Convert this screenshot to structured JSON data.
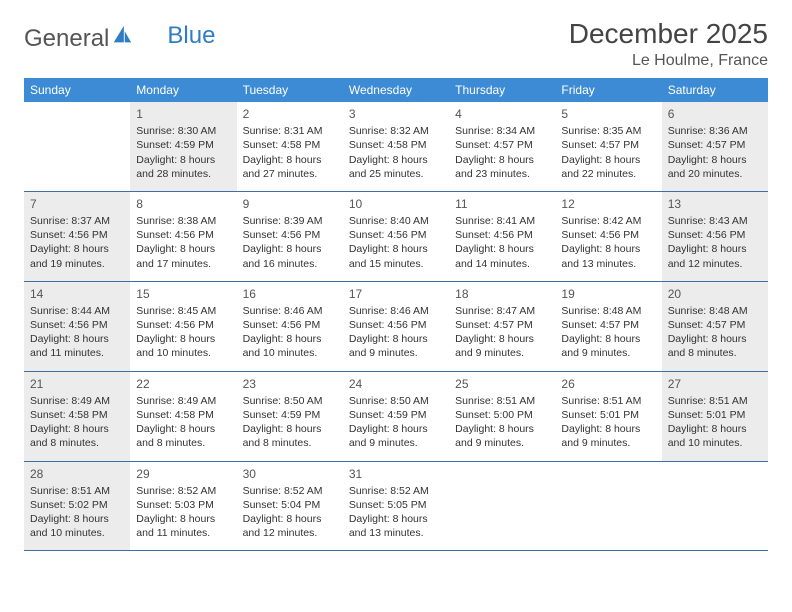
{
  "logo": {
    "word1": "General",
    "word2": "Blue"
  },
  "header": {
    "month": "December 2025",
    "location": "Le Houlme, France"
  },
  "colors": {
    "header_bg": "#3d8bd4",
    "header_text": "#ffffff",
    "week_border": "#3d6fa3",
    "shade_bg": "#ececec",
    "body_text": "#333333",
    "logo_gray": "#555555",
    "logo_blue": "#2f7dc4"
  },
  "weekdays": [
    "Sunday",
    "Monday",
    "Tuesday",
    "Wednesday",
    "Thursday",
    "Friday",
    "Saturday"
  ],
  "weeks": [
    [
      {
        "day": "",
        "shade": false
      },
      {
        "day": "1",
        "shade": true,
        "sunrise": "Sunrise: 8:30 AM",
        "sunset": "Sunset: 4:59 PM",
        "daylight": "Daylight: 8 hours and 28 minutes."
      },
      {
        "day": "2",
        "shade": false,
        "sunrise": "Sunrise: 8:31 AM",
        "sunset": "Sunset: 4:58 PM",
        "daylight": "Daylight: 8 hours and 27 minutes."
      },
      {
        "day": "3",
        "shade": false,
        "sunrise": "Sunrise: 8:32 AM",
        "sunset": "Sunset: 4:58 PM",
        "daylight": "Daylight: 8 hours and 25 minutes."
      },
      {
        "day": "4",
        "shade": false,
        "sunrise": "Sunrise: 8:34 AM",
        "sunset": "Sunset: 4:57 PM",
        "daylight": "Daylight: 8 hours and 23 minutes."
      },
      {
        "day": "5",
        "shade": false,
        "sunrise": "Sunrise: 8:35 AM",
        "sunset": "Sunset: 4:57 PM",
        "daylight": "Daylight: 8 hours and 22 minutes."
      },
      {
        "day": "6",
        "shade": true,
        "sunrise": "Sunrise: 8:36 AM",
        "sunset": "Sunset: 4:57 PM",
        "daylight": "Daylight: 8 hours and 20 minutes."
      }
    ],
    [
      {
        "day": "7",
        "shade": true,
        "sunrise": "Sunrise: 8:37 AM",
        "sunset": "Sunset: 4:56 PM",
        "daylight": "Daylight: 8 hours and 19 minutes."
      },
      {
        "day": "8",
        "shade": false,
        "sunrise": "Sunrise: 8:38 AM",
        "sunset": "Sunset: 4:56 PM",
        "daylight": "Daylight: 8 hours and 17 minutes."
      },
      {
        "day": "9",
        "shade": false,
        "sunrise": "Sunrise: 8:39 AM",
        "sunset": "Sunset: 4:56 PM",
        "daylight": "Daylight: 8 hours and 16 minutes."
      },
      {
        "day": "10",
        "shade": false,
        "sunrise": "Sunrise: 8:40 AM",
        "sunset": "Sunset: 4:56 PM",
        "daylight": "Daylight: 8 hours and 15 minutes."
      },
      {
        "day": "11",
        "shade": false,
        "sunrise": "Sunrise: 8:41 AM",
        "sunset": "Sunset: 4:56 PM",
        "daylight": "Daylight: 8 hours and 14 minutes."
      },
      {
        "day": "12",
        "shade": false,
        "sunrise": "Sunrise: 8:42 AM",
        "sunset": "Sunset: 4:56 PM",
        "daylight": "Daylight: 8 hours and 13 minutes."
      },
      {
        "day": "13",
        "shade": true,
        "sunrise": "Sunrise: 8:43 AM",
        "sunset": "Sunset: 4:56 PM",
        "daylight": "Daylight: 8 hours and 12 minutes."
      }
    ],
    [
      {
        "day": "14",
        "shade": true,
        "sunrise": "Sunrise: 8:44 AM",
        "sunset": "Sunset: 4:56 PM",
        "daylight": "Daylight: 8 hours and 11 minutes."
      },
      {
        "day": "15",
        "shade": false,
        "sunrise": "Sunrise: 8:45 AM",
        "sunset": "Sunset: 4:56 PM",
        "daylight": "Daylight: 8 hours and 10 minutes."
      },
      {
        "day": "16",
        "shade": false,
        "sunrise": "Sunrise: 8:46 AM",
        "sunset": "Sunset: 4:56 PM",
        "daylight": "Daylight: 8 hours and 10 minutes."
      },
      {
        "day": "17",
        "shade": false,
        "sunrise": "Sunrise: 8:46 AM",
        "sunset": "Sunset: 4:56 PM",
        "daylight": "Daylight: 8 hours and 9 minutes."
      },
      {
        "day": "18",
        "shade": false,
        "sunrise": "Sunrise: 8:47 AM",
        "sunset": "Sunset: 4:57 PM",
        "daylight": "Daylight: 8 hours and 9 minutes."
      },
      {
        "day": "19",
        "shade": false,
        "sunrise": "Sunrise: 8:48 AM",
        "sunset": "Sunset: 4:57 PM",
        "daylight": "Daylight: 8 hours and 9 minutes."
      },
      {
        "day": "20",
        "shade": true,
        "sunrise": "Sunrise: 8:48 AM",
        "sunset": "Sunset: 4:57 PM",
        "daylight": "Daylight: 8 hours and 8 minutes."
      }
    ],
    [
      {
        "day": "21",
        "shade": true,
        "sunrise": "Sunrise: 8:49 AM",
        "sunset": "Sunset: 4:58 PM",
        "daylight": "Daylight: 8 hours and 8 minutes."
      },
      {
        "day": "22",
        "shade": false,
        "sunrise": "Sunrise: 8:49 AM",
        "sunset": "Sunset: 4:58 PM",
        "daylight": "Daylight: 8 hours and 8 minutes."
      },
      {
        "day": "23",
        "shade": false,
        "sunrise": "Sunrise: 8:50 AM",
        "sunset": "Sunset: 4:59 PM",
        "daylight": "Daylight: 8 hours and 8 minutes."
      },
      {
        "day": "24",
        "shade": false,
        "sunrise": "Sunrise: 8:50 AM",
        "sunset": "Sunset: 4:59 PM",
        "daylight": "Daylight: 8 hours and 9 minutes."
      },
      {
        "day": "25",
        "shade": false,
        "sunrise": "Sunrise: 8:51 AM",
        "sunset": "Sunset: 5:00 PM",
        "daylight": "Daylight: 8 hours and 9 minutes."
      },
      {
        "day": "26",
        "shade": false,
        "sunrise": "Sunrise: 8:51 AM",
        "sunset": "Sunset: 5:01 PM",
        "daylight": "Daylight: 8 hours and 9 minutes."
      },
      {
        "day": "27",
        "shade": true,
        "sunrise": "Sunrise: 8:51 AM",
        "sunset": "Sunset: 5:01 PM",
        "daylight": "Daylight: 8 hours and 10 minutes."
      }
    ],
    [
      {
        "day": "28",
        "shade": true,
        "sunrise": "Sunrise: 8:51 AM",
        "sunset": "Sunset: 5:02 PM",
        "daylight": "Daylight: 8 hours and 10 minutes."
      },
      {
        "day": "29",
        "shade": false,
        "sunrise": "Sunrise: 8:52 AM",
        "sunset": "Sunset: 5:03 PM",
        "daylight": "Daylight: 8 hours and 11 minutes."
      },
      {
        "day": "30",
        "shade": false,
        "sunrise": "Sunrise: 8:52 AM",
        "sunset": "Sunset: 5:04 PM",
        "daylight": "Daylight: 8 hours and 12 minutes."
      },
      {
        "day": "31",
        "shade": false,
        "sunrise": "Sunrise: 8:52 AM",
        "sunset": "Sunset: 5:05 PM",
        "daylight": "Daylight: 8 hours and 13 minutes."
      },
      {
        "day": "",
        "shade": false
      },
      {
        "day": "",
        "shade": false
      },
      {
        "day": "",
        "shade": false
      }
    ]
  ]
}
